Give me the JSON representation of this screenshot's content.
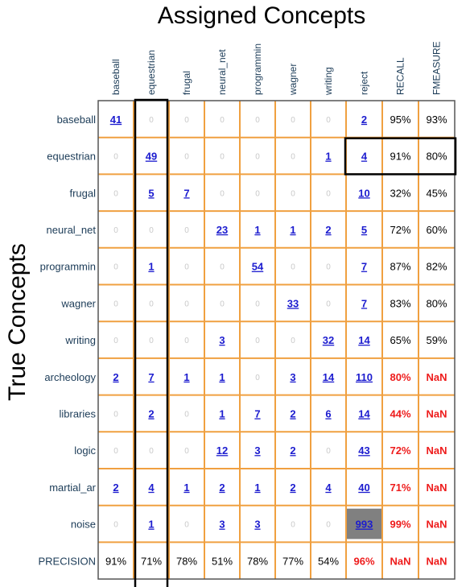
{
  "chart_data": {
    "type": "table",
    "title": "Assigned Concepts",
    "ylabel": "True Concepts",
    "columns": [
      "baseball",
      "equestrian",
      "frugal",
      "neural_net",
      "programmin",
      "wagner",
      "writing",
      "reject",
      "RECALL",
      "FMEASURE"
    ],
    "rows": [
      {
        "label": "baseball",
        "values": [
          "41",
          "0",
          "0",
          "0",
          "0",
          "0",
          "0",
          "2",
          "95%",
          "93%"
        ]
      },
      {
        "label": "equestrian",
        "values": [
          "0",
          "49",
          "0",
          "0",
          "0",
          "0",
          "1",
          "4",
          "91%",
          "80%"
        ]
      },
      {
        "label": "frugal",
        "values": [
          "0",
          "5",
          "7",
          "0",
          "0",
          "0",
          "0",
          "10",
          "32%",
          "45%"
        ]
      },
      {
        "label": "neural_net",
        "values": [
          "0",
          "0",
          "0",
          "23",
          "1",
          "1",
          "2",
          "5",
          "72%",
          "60%"
        ]
      },
      {
        "label": "programmin",
        "values": [
          "0",
          "1",
          "0",
          "0",
          "54",
          "0",
          "0",
          "7",
          "87%",
          "82%"
        ]
      },
      {
        "label": "wagner",
        "values": [
          "0",
          "0",
          "0",
          "0",
          "0",
          "33",
          "0",
          "7",
          "83%",
          "80%"
        ]
      },
      {
        "label": "writing",
        "values": [
          "0",
          "0",
          "0",
          "3",
          "0",
          "0",
          "32",
          "14",
          "65%",
          "59%"
        ]
      },
      {
        "label": "archeology",
        "values": [
          "2",
          "7",
          "1",
          "1",
          "0",
          "3",
          "14",
          "110",
          "80%",
          "NaN"
        ]
      },
      {
        "label": "libraries",
        "values": [
          "0",
          "2",
          "0",
          "1",
          "7",
          "2",
          "6",
          "14",
          "44%",
          "NaN"
        ]
      },
      {
        "label": "logic",
        "values": [
          "0",
          "0",
          "0",
          "12",
          "3",
          "2",
          "0",
          "43",
          "72%",
          "NaN"
        ]
      },
      {
        "label": "martial_ar",
        "values": [
          "2",
          "4",
          "1",
          "2",
          "1",
          "2",
          "4",
          "40",
          "71%",
          "NaN"
        ]
      },
      {
        "label": "noise",
        "values": [
          "0",
          "1",
          "0",
          "3",
          "3",
          "0",
          "0",
          "993",
          "99%",
          "NaN"
        ]
      }
    ],
    "precision_row": {
      "label": "PRECISION",
      "values": [
        "91%",
        "71%",
        "78%",
        "51%",
        "78%",
        "77%",
        "54%",
        "96%",
        "NaN",
        "NaN"
      ]
    },
    "highlights": {
      "column_box": "equestrian",
      "row_box": {
        "row": "equestrian",
        "columns": [
          "reject",
          "RECALL",
          "FMEASURE"
        ]
      },
      "shaded_cell": {
        "row": "noise",
        "column": "reject"
      },
      "red_text_rows": [
        "archeology",
        "libraries",
        "logic",
        "martial_ar",
        "noise"
      ]
    },
    "colors": {
      "grid": "#f0a040",
      "border": "#555555",
      "link": "#1c1ccf",
      "zero": "#c9c9c9",
      "red": "#ee1c1c",
      "label": "#1b3b57",
      "shade": "#808080",
      "box": "#000000"
    }
  }
}
